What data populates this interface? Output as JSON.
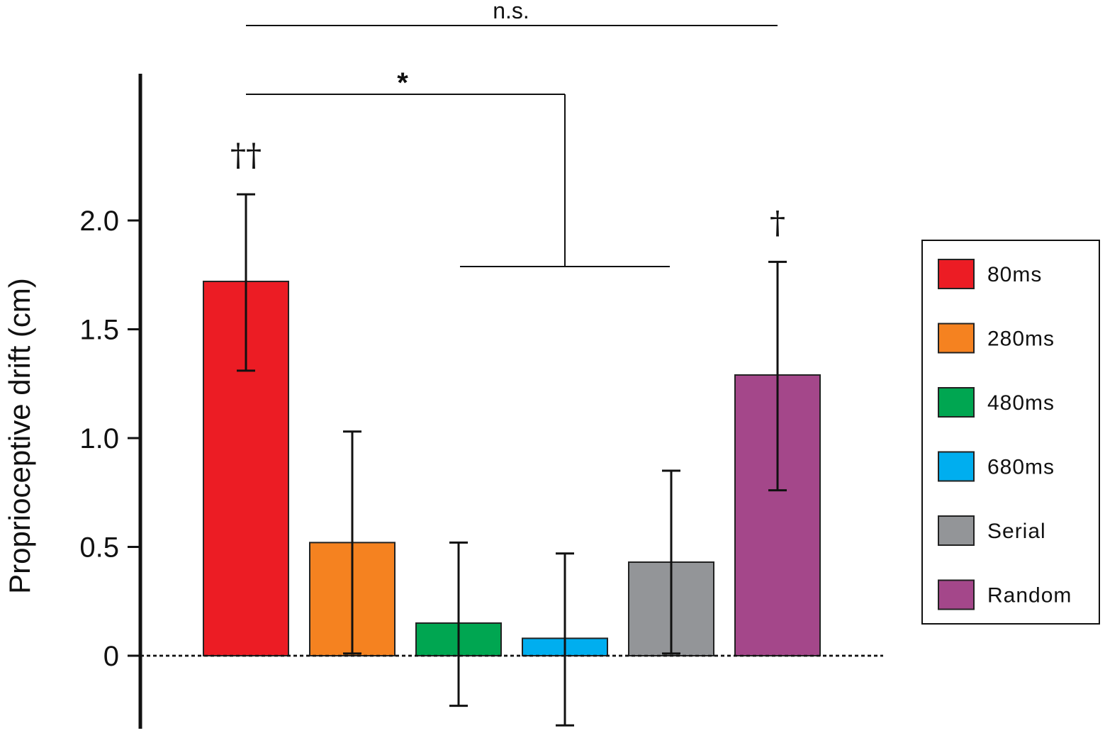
{
  "chart_data": {
    "type": "bar",
    "categories": [
      "80ms",
      "280ms",
      "480ms",
      "680ms",
      "Serial",
      "Random"
    ],
    "values": [
      1.72,
      0.52,
      0.15,
      0.08,
      0.43,
      1.29
    ],
    "error_upper": [
      2.12,
      1.03,
      0.52,
      0.47,
      0.85,
      1.81
    ],
    "error_lower": [
      1.31,
      0.01,
      -0.23,
      -0.32,
      0.01,
      0.76
    ],
    "colors": [
      "#ec1c24",
      "#f58220",
      "#00a651",
      "#00aeef",
      "#939598",
      "#a4478a"
    ],
    "ylabel": "Proprioceptive drift (cm)",
    "xlabel": "",
    "yticks": [
      0,
      0.5,
      1.0,
      1.5,
      2.0
    ],
    "ytick_labels": [
      "0",
      "0.5",
      "1.0",
      "1.5",
      "2.0"
    ],
    "ylim": [
      -0.33,
      2.6
    ],
    "zero_line": "dashed",
    "grid": false,
    "legend_position": "right",
    "bar_annotations": [
      {
        "category": "80ms",
        "text": "††"
      },
      {
        "category": "Random",
        "text": "†"
      }
    ],
    "significance": [
      {
        "label": "n.s.",
        "from": "80ms",
        "to": "Random"
      },
      {
        "label": "*",
        "from": "80ms",
        "to": [
          "480ms",
          "680ms",
          "Serial"
        ]
      }
    ]
  }
}
